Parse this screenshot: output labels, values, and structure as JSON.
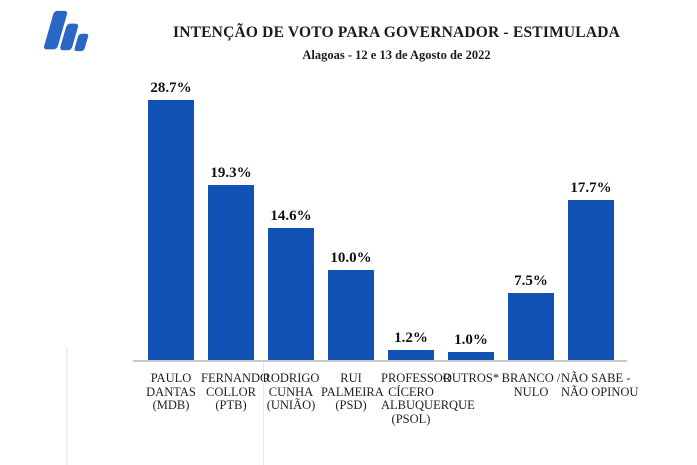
{
  "brand": {
    "logo_icon": "three-slanted-bars-logo",
    "logo_color": "#2a66c5"
  },
  "header": {
    "title": "INTENÇÃO DE VOTO PARA GOVERNADOR - ESTIMULADA",
    "subtitle": "Alagoas - 12 e 13 de Agosto de 2022"
  },
  "chart_data": {
    "type": "bar",
    "title": "INTENÇÃO DE VOTO PARA GOVERNADOR - ESTIMULADA",
    "subtitle": "Alagoas - 12 e 13 de Agosto de 2022",
    "categories": [
      "PAULO DANTAS (MDB)",
      "FERNANDO COLLOR (PTB)",
      "RODRIGO CUNHA (UNIÃO)",
      "RUI PALMEIRA (PSD)",
      "PROFESSOR CÍCERO ALBUQUERQUE (PSOL)",
      "OUTROS*",
      "BRANCO /NULO",
      "NÃO SABE - NÃO OPINOU"
    ],
    "category_lines": [
      [
        "PAULO",
        "DANTAS",
        "(MDB)"
      ],
      [
        "FERNANDO",
        "COLLOR",
        "(PTB)"
      ],
      [
        "RODRIGO",
        "CUNHA",
        "(UNIÃO)"
      ],
      [
        "RUI",
        "PALMEIRA",
        "(PSD)"
      ],
      [
        "PROFESSOR",
        "CÍCERO",
        "ALBUQUERQUE",
        "(PSOL)"
      ],
      [
        "OUTROS*"
      ],
      [
        "BRANCO /",
        "NULO"
      ],
      [
        "NÃO SABE -",
        "NÃO OPINOU"
      ]
    ],
    "values": [
      28.7,
      19.3,
      14.6,
      10.0,
      1.2,
      1.0,
      7.5,
      17.7
    ],
    "value_labels": [
      "28.7%",
      "19.3%",
      "14.6%",
      "10.0%",
      "1.2%",
      "1.0%",
      "7.5%",
      "17.7%"
    ],
    "bar_color": "#1252b5",
    "axis_color": "#c9c9c9",
    "ylim": [
      0,
      30
    ],
    "grid": false,
    "legend": false,
    "value_labels_position": "above-bars",
    "xlabel": "",
    "ylabel": ""
  }
}
